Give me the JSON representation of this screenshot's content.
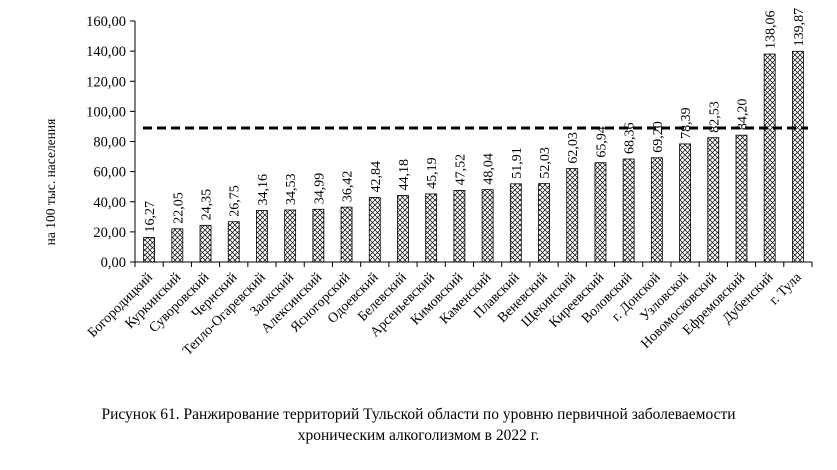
{
  "chart_data": {
    "type": "bar",
    "ylabel": "на 100 тыс. населения",
    "ylim": [
      0,
      160
    ],
    "ytick_labels": [
      "0,00",
      "20,00",
      "40,00",
      "60,00",
      "80,00",
      "100,00",
      "120,00",
      "140,00",
      "160,00"
    ],
    "categories": [
      "Богородицкий",
      "Куркинский",
      "Суворовский",
      "Чернский",
      "Тепло-Огаревский",
      "Заокский",
      "Алексинский",
      "Ясногорский",
      "Одоевский",
      "Белевский",
      "Арсеньевский",
      "Кимовский",
      "Каменский",
      "Плавский",
      "Веневский",
      "Щекинский",
      "Киреевский",
      "Воловский",
      "г. Донской",
      "Узловской",
      "Новомосковский",
      "Ефремовский",
      "Дубенский",
      "г. Тула"
    ],
    "values": [
      16.27,
      22.05,
      24.35,
      26.75,
      34.16,
      34.53,
      34.99,
      36.42,
      42.84,
      44.18,
      45.19,
      47.52,
      48.04,
      51.91,
      52.03,
      62.03,
      65.94,
      68.36,
      69.2,
      78.39,
      82.53,
      84.2,
      138.06,
      139.87
    ],
    "value_labels": [
      "16,27",
      "22,05",
      "24,35",
      "26,75",
      "34,16",
      "34,53",
      "34,99",
      "36,42",
      "42,84",
      "44,18",
      "45,19",
      "47,52",
      "48,04",
      "51,91",
      "52,03",
      "62,03",
      "65,94",
      "68,36",
      "69,20",
      "78,39",
      "82,53",
      "84,20",
      "138,06",
      "139,87"
    ],
    "reference_line": 89,
    "bar_pattern": "crosshatch",
    "grid": false,
    "legend": "none"
  },
  "caption": {
    "line1": "Рисунок 61. Ранжирование территорий Тульской области по уровню первичной заболеваемости",
    "line2": "хроническим алкоголизмом в 2022 г."
  }
}
